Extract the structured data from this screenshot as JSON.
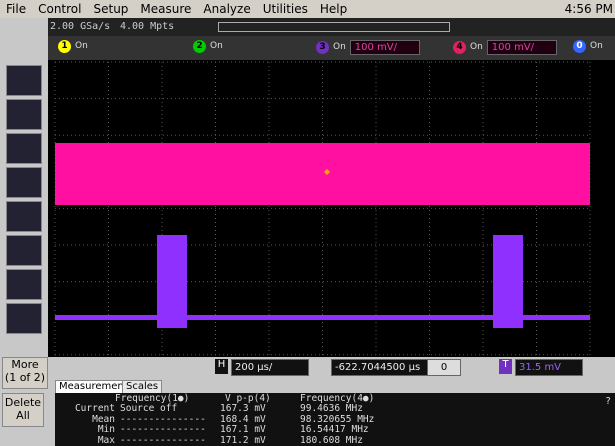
{
  "menu": [
    "File",
    "Control",
    "Setup",
    "Measure",
    "Analyze",
    "Utilities",
    "Help"
  ],
  "clock": "4:56 PM",
  "acquisition": {
    "sample_rate": "2.00 GSa/s",
    "memory": "4.00 Mpts"
  },
  "channels": [
    {
      "number": "1",
      "state": "On"
    },
    {
      "number": "2",
      "state": "On"
    },
    {
      "number": "3",
      "state": "On",
      "scale": "100 mV/"
    },
    {
      "number": "4",
      "state": "On",
      "scale": "100 mV/"
    },
    {
      "number": "0",
      "state": "On"
    }
  ],
  "sidebar": {
    "more": "More",
    "more_page": "(1 of 2)",
    "delete": "Delete All"
  },
  "controls": {
    "horizontal_label": "H",
    "time_scale": "200 µs/",
    "delay": "-622.7044500 µs",
    "delay_step": "0",
    "trigger_label": "T",
    "trigger_level": "31.5 mV"
  },
  "tabs": [
    "Measurements",
    "Scales"
  ],
  "measurements": {
    "headers": [
      "Frequency(1●)",
      "V p-p(4)",
      "Frequency(4●)"
    ],
    "rows": [
      {
        "label": "Current",
        "values": [
          "Source off",
          "167.3 mV",
          "99.4636 MHz"
        ]
      },
      {
        "label": "Mean",
        "values": [
          "---------------",
          "168.4 mV",
          "98.320655 MHz"
        ]
      },
      {
        "label": "Min",
        "values": [
          "---------------",
          "167.1 mV",
          "16.54417 MHz"
        ]
      },
      {
        "label": "Max",
        "values": [
          "---------------",
          "171.2 mV",
          "180.608 MHz"
        ]
      }
    ]
  },
  "help": "?"
}
